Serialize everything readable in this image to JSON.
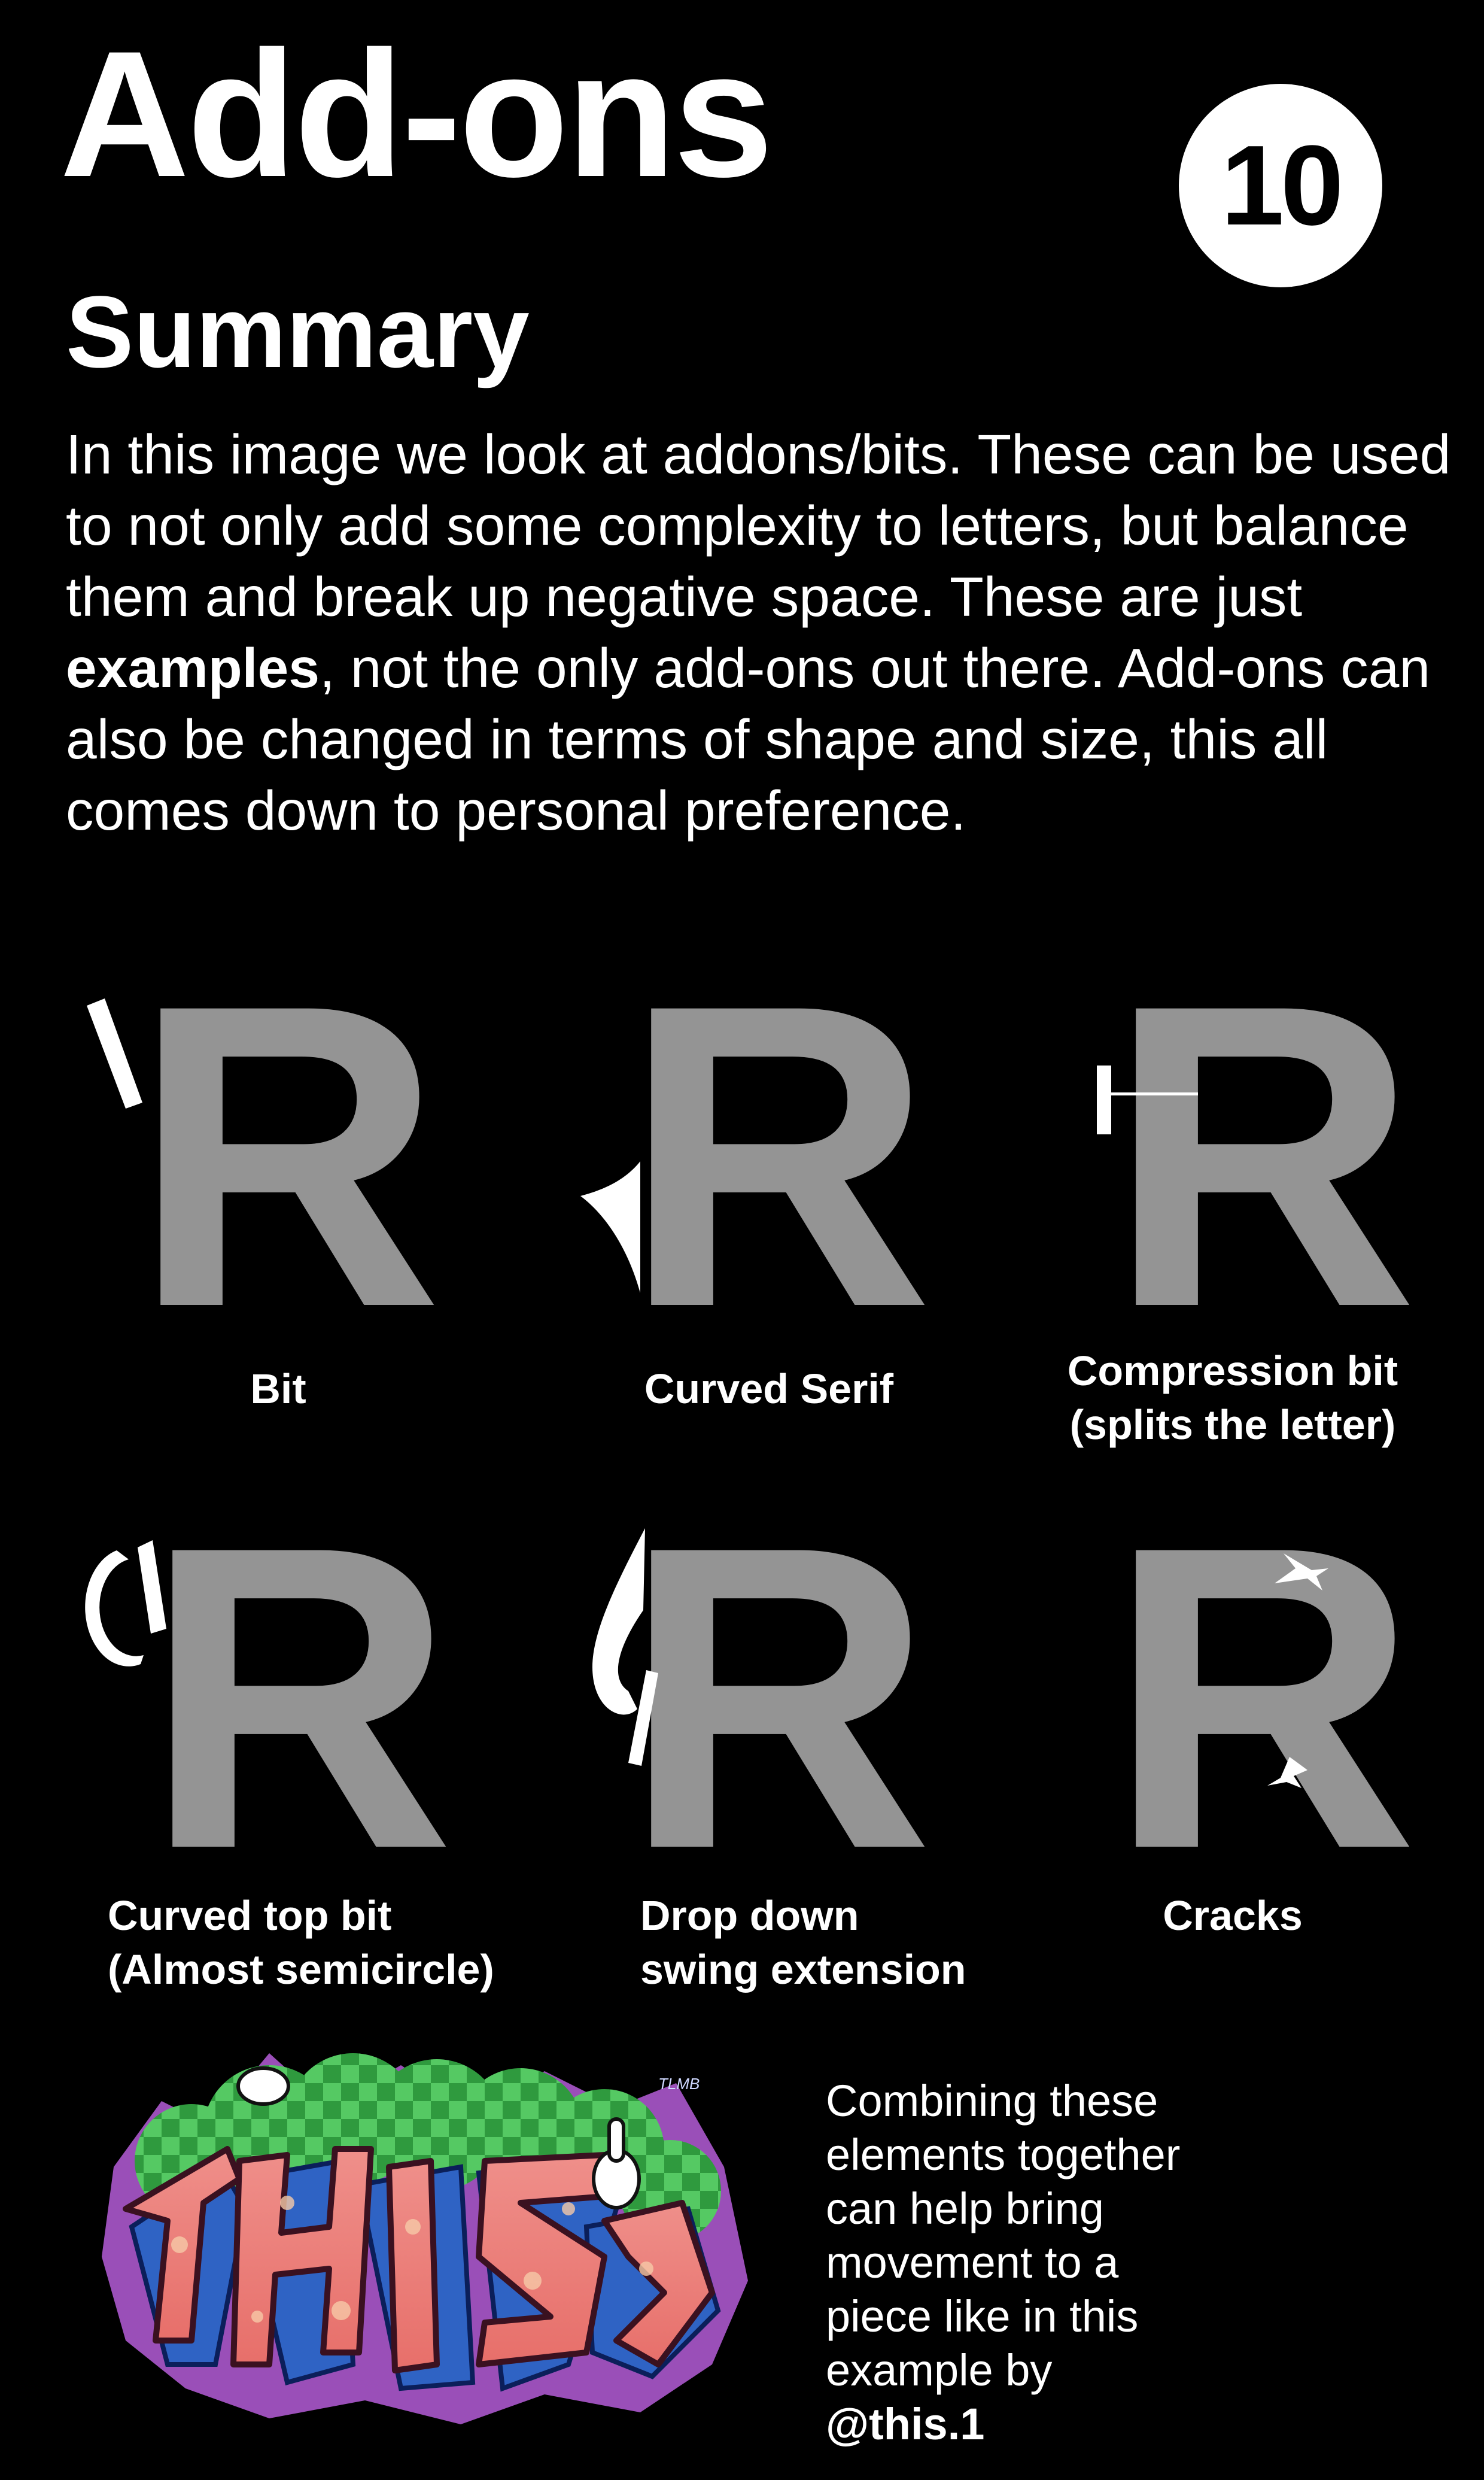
{
  "title": "Add-ons",
  "badge": "10",
  "subtitle": "Summary",
  "summary": {
    "before_bold": "In this image we look at addons/bits. These can be used to not only add some complexity to letters, but balance them and break up negative space. These are just ",
    "bold": "examples",
    "after_bold": ", not the only add-ons out there. Add-ons can also be changed in terms of shape and size, this all comes down to personal preference."
  },
  "colors": {
    "background": "#000000",
    "letter_fill": "#949494",
    "addon_fill": "#ffffff",
    "text": "#ffffff"
  },
  "examples": [
    {
      "letter": "R",
      "caption_lines": [
        "Bit"
      ]
    },
    {
      "letter": "R",
      "caption_lines": [
        "Curved Serif"
      ]
    },
    {
      "letter": "R",
      "caption_lines": [
        "Compression bit",
        "(splits the letter)"
      ]
    },
    {
      "letter": "R",
      "caption_lines": [
        "Curved top bit",
        "(Almost semicircle)"
      ]
    },
    {
      "letter": "R",
      "caption_lines": [
        "Drop down",
        "swing extension"
      ]
    },
    {
      "letter": "R",
      "caption_lines": [
        "Cracks"
      ]
    }
  ],
  "combining": {
    "lines": [
      "Combining these",
      "elements together",
      "can help bring",
      "movement to a",
      "piece like in this"
    ],
    "last_line_prefix": "example by ",
    "credit": "@this.1"
  },
  "graffiti": {
    "description_icon": "graffiti-piece-image",
    "tag_text": "TLMB"
  }
}
